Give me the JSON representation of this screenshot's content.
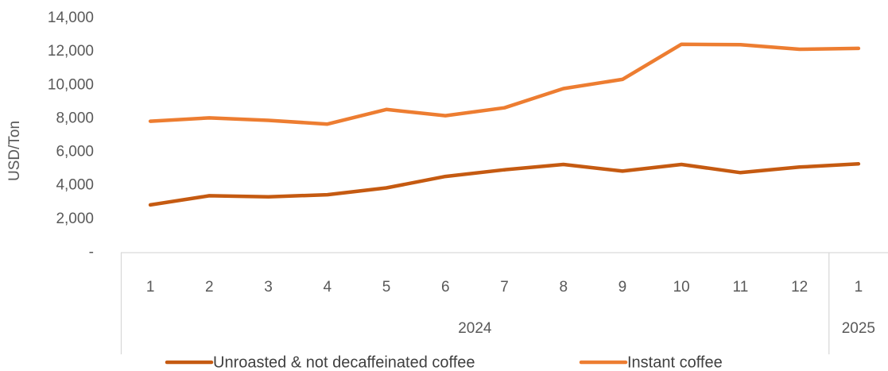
{
  "chart_data": {
    "type": "line",
    "title": "",
    "ylabel": "USD/Ton",
    "xlabel": "",
    "ylim": [
      0,
      14000
    ],
    "ytick_values": [
      0,
      2000,
      4000,
      6000,
      8000,
      10000,
      12000,
      14000
    ],
    "ytick_labels": [
      "-",
      "2,000",
      "4,000",
      "6,000",
      "8,000",
      "10,000",
      "12,000",
      "14,000"
    ],
    "categories": [
      "1",
      "2",
      "3",
      "4",
      "5",
      "6",
      "7",
      "8",
      "9",
      "10",
      "11",
      "12",
      "1"
    ],
    "groups": [
      {
        "label": "2024",
        "count": 12
      },
      {
        "label": "2025",
        "count": 1
      }
    ],
    "legend_position": "bottom",
    "grid": false,
    "series": [
      {
        "name": "Unroasted & not decaffeinated coffee",
        "color": "#C55A11",
        "values": [
          2850,
          3400,
          3330,
          3460,
          3870,
          4550,
          4950,
          5270,
          4870,
          5270,
          4780,
          5110,
          5300
        ]
      },
      {
        "name": "Instant coffee",
        "color": "#ED7D31",
        "values": [
          7850,
          8050,
          7900,
          7680,
          8550,
          8180,
          8650,
          9800,
          10350,
          12450,
          12420,
          12150,
          12200
        ]
      }
    ]
  }
}
